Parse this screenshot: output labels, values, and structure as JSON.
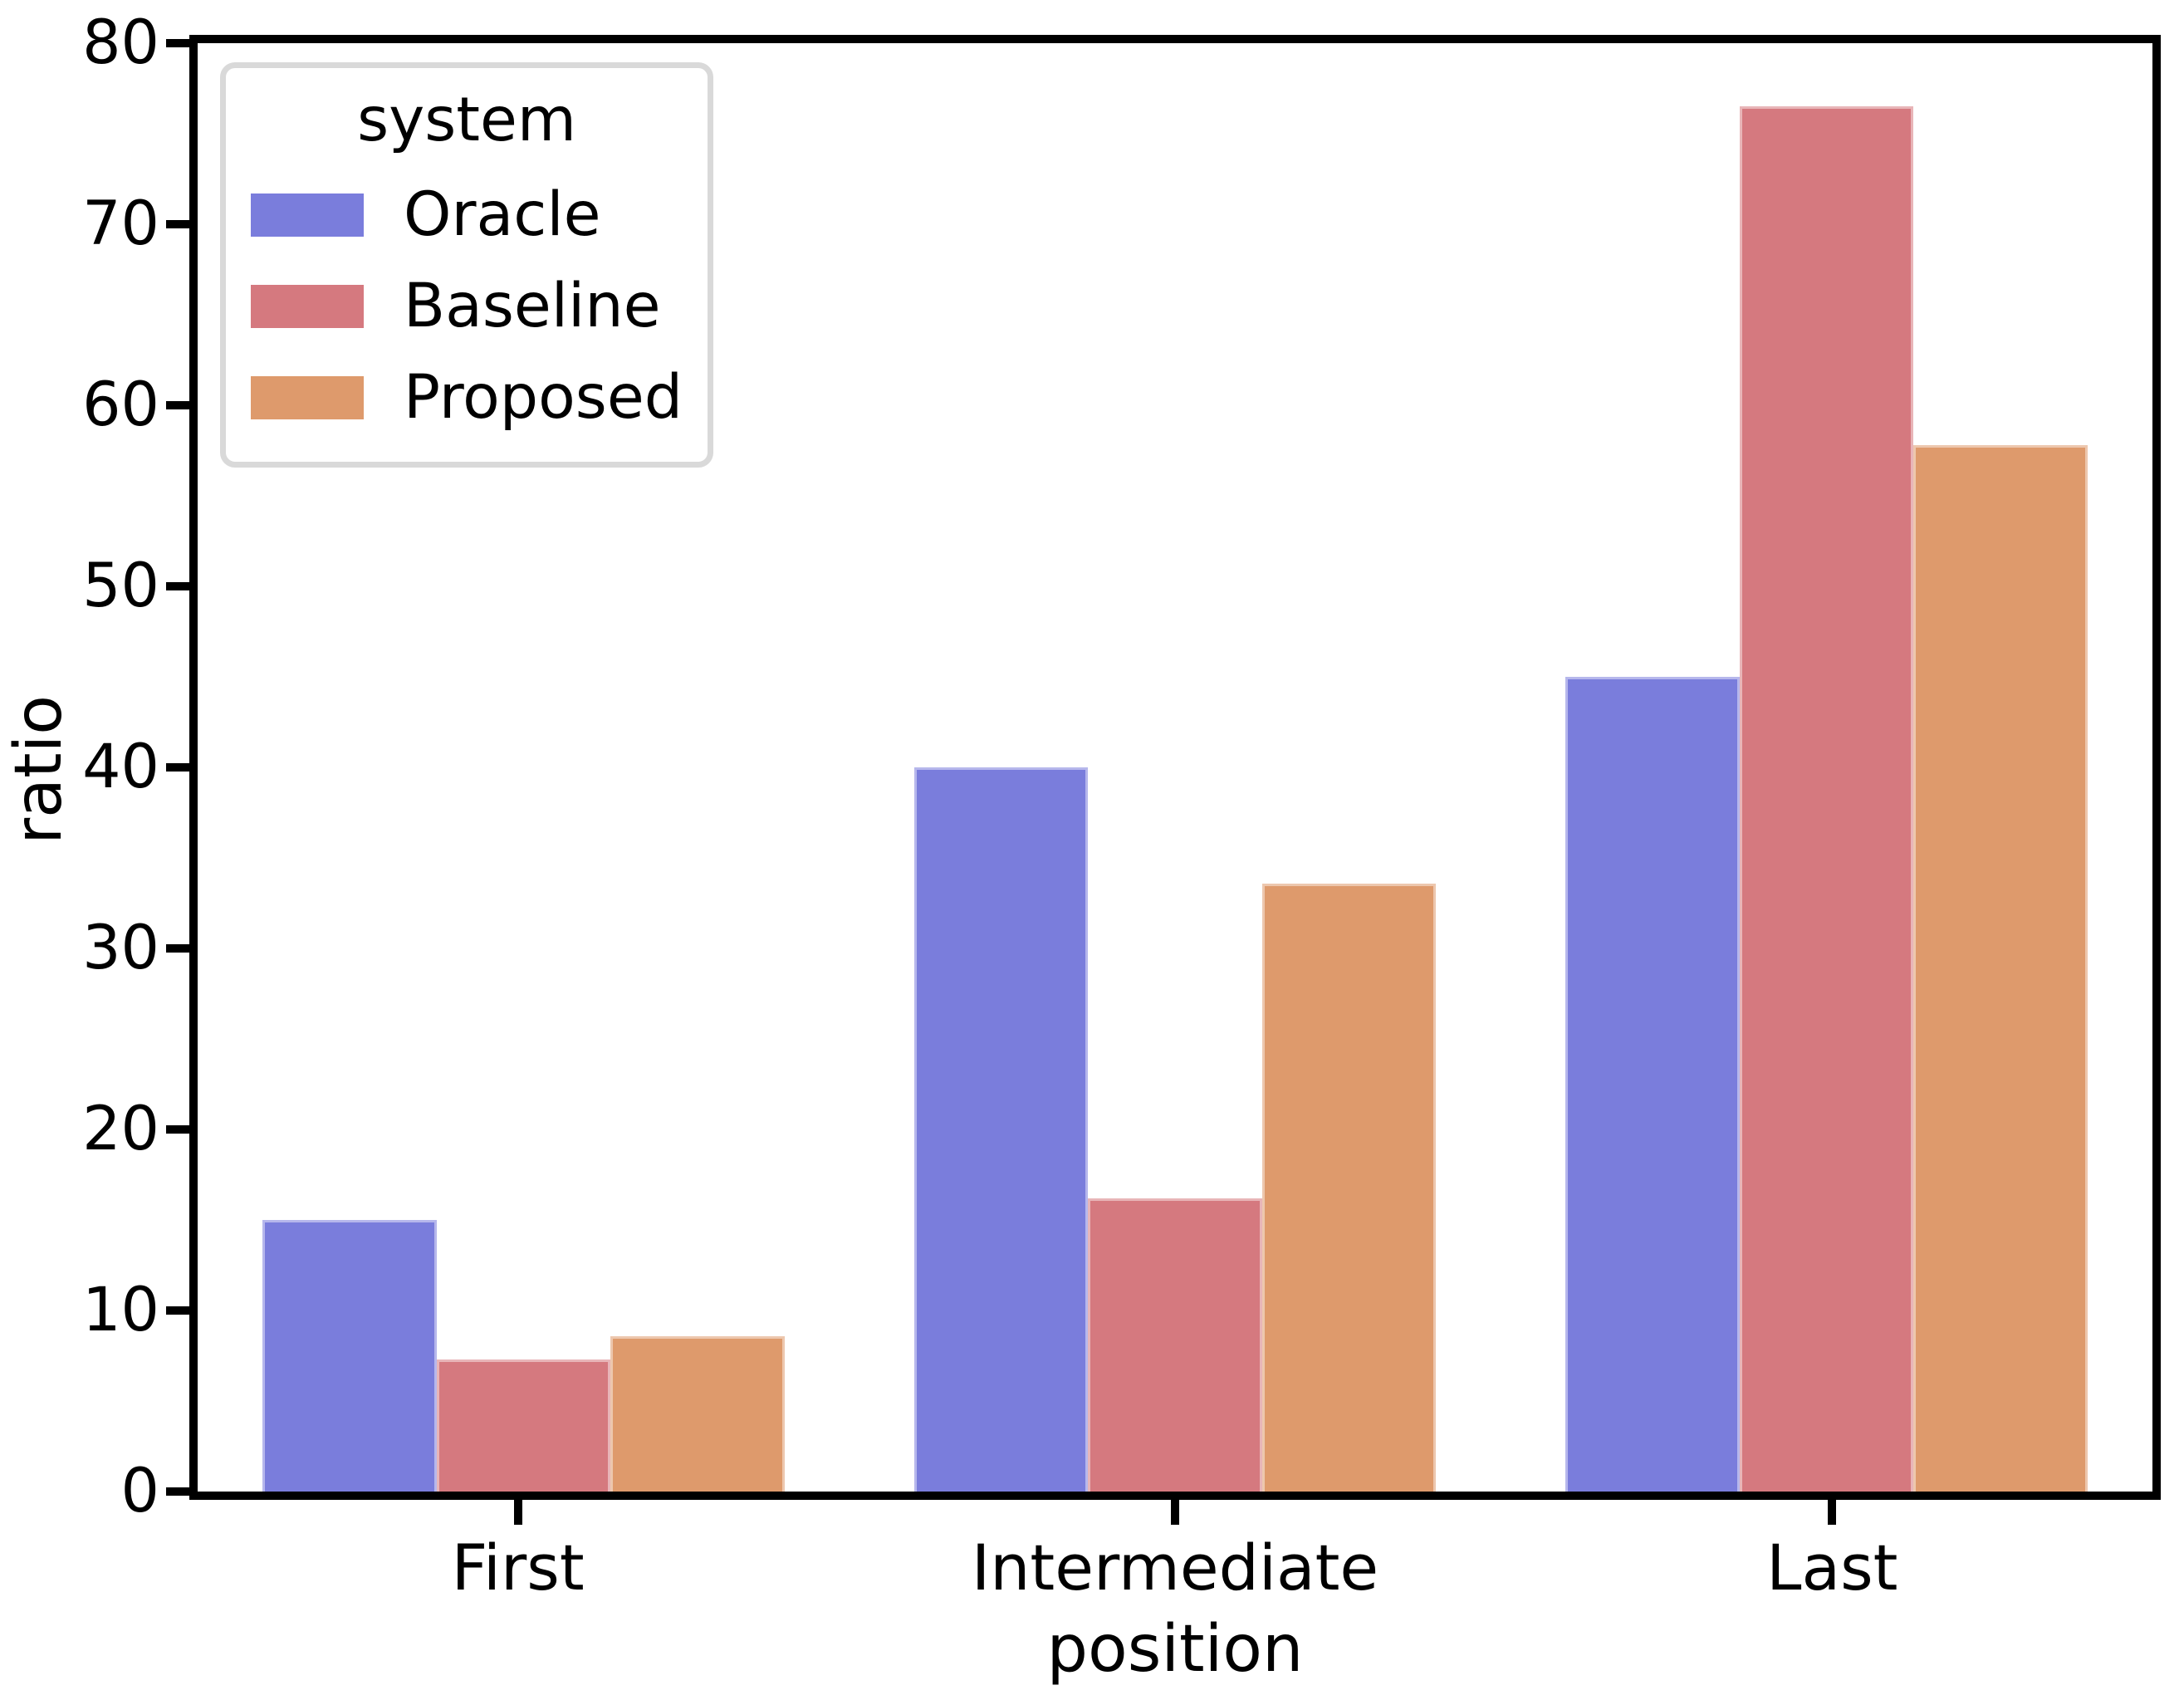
{
  "chart_data": {
    "type": "bar",
    "title": "",
    "categories": [
      "First",
      "Intermediate",
      "Last"
    ],
    "series": [
      {
        "name": "Oracle",
        "color": "#7A7DDC",
        "values": [
          15.0,
          40.0,
          45.0
        ]
      },
      {
        "name": "Baseline",
        "color": "#D5797F",
        "values": [
          7.3,
          16.2,
          76.5
        ]
      },
      {
        "name": "Proposed",
        "color": "#DE9A6C",
        "values": [
          8.6,
          33.6,
          57.8
        ]
      }
    ],
    "xlabel": "position",
    "ylabel": "ratio",
    "ylim": [
      0,
      80
    ],
    "yticks": [
      0,
      10,
      20,
      30,
      40,
      50,
      60,
      70,
      80
    ],
    "grid": false,
    "legend": {
      "title": "system",
      "position": "upper left"
    }
  },
  "colors": {
    "axis": "#000000",
    "text": "#000000",
    "legend_border": "#D9D9D9",
    "background": "#FFFFFF"
  }
}
